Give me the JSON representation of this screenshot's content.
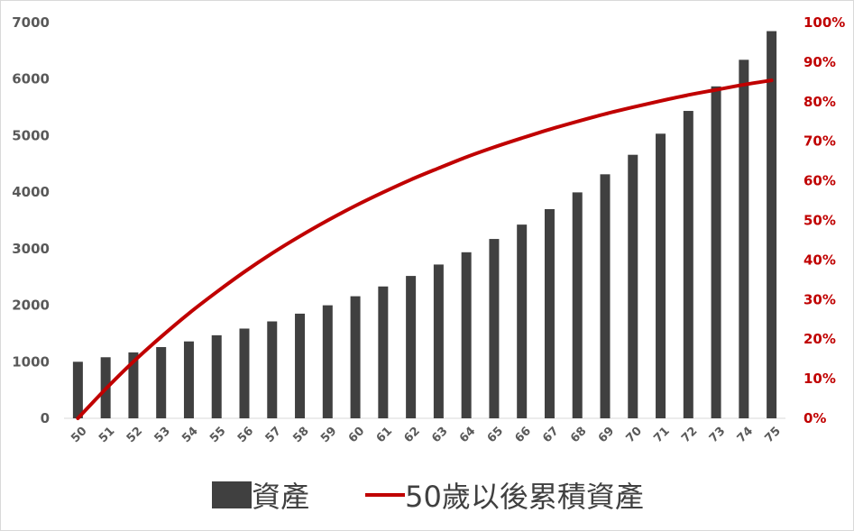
{
  "chart_data": {
    "type": "bar",
    "categories": [
      "50",
      "51",
      "52",
      "53",
      "54",
      "55",
      "56",
      "57",
      "58",
      "59",
      "60",
      "61",
      "62",
      "63",
      "64",
      "65",
      "66",
      "67",
      "68",
      "69",
      "70",
      "71",
      "72",
      "73",
      "74",
      "75"
    ],
    "series": [
      {
        "name": "資產",
        "type": "bar",
        "axis": "left",
        "values": [
          1000,
          1080,
          1166,
          1260,
          1360,
          1469,
          1587,
          1714,
          1851,
          1999,
          2159,
          2332,
          2518,
          2720,
          2937,
          3172,
          3426,
          3700,
          3996,
          4316,
          4661,
          5034,
          5437,
          5871,
          6341,
          6848
        ]
      },
      {
        "name": "50歲以後累積資產",
        "type": "line",
        "axis": "right",
        "values": [
          0,
          0.074,
          0.143,
          0.206,
          0.265,
          0.319,
          0.37,
          0.417,
          0.46,
          0.5,
          0.537,
          0.571,
          0.603,
          0.632,
          0.66,
          0.685,
          0.708,
          0.73,
          0.75,
          0.769,
          0.786,
          0.802,
          0.817,
          0.83,
          0.843,
          0.854
        ]
      }
    ],
    "left_axis": {
      "ylim": [
        0,
        7000
      ],
      "ticks": [
        "0",
        "1000",
        "2000",
        "3000",
        "4000",
        "5000",
        "6000",
        "7000"
      ]
    },
    "right_axis": {
      "ylim": [
        0,
        1
      ],
      "ticks": [
        "0%",
        "10%",
        "20%",
        "30%",
        "40%",
        "50%",
        "60%",
        "70%",
        "80%",
        "90%",
        "100%"
      ]
    },
    "grid": false,
    "legend_position": "bottom",
    "colors": {
      "bar": "#404040",
      "line": "#c00000",
      "left_axis_text": "#595959",
      "right_axis_text": "#c00000"
    }
  }
}
